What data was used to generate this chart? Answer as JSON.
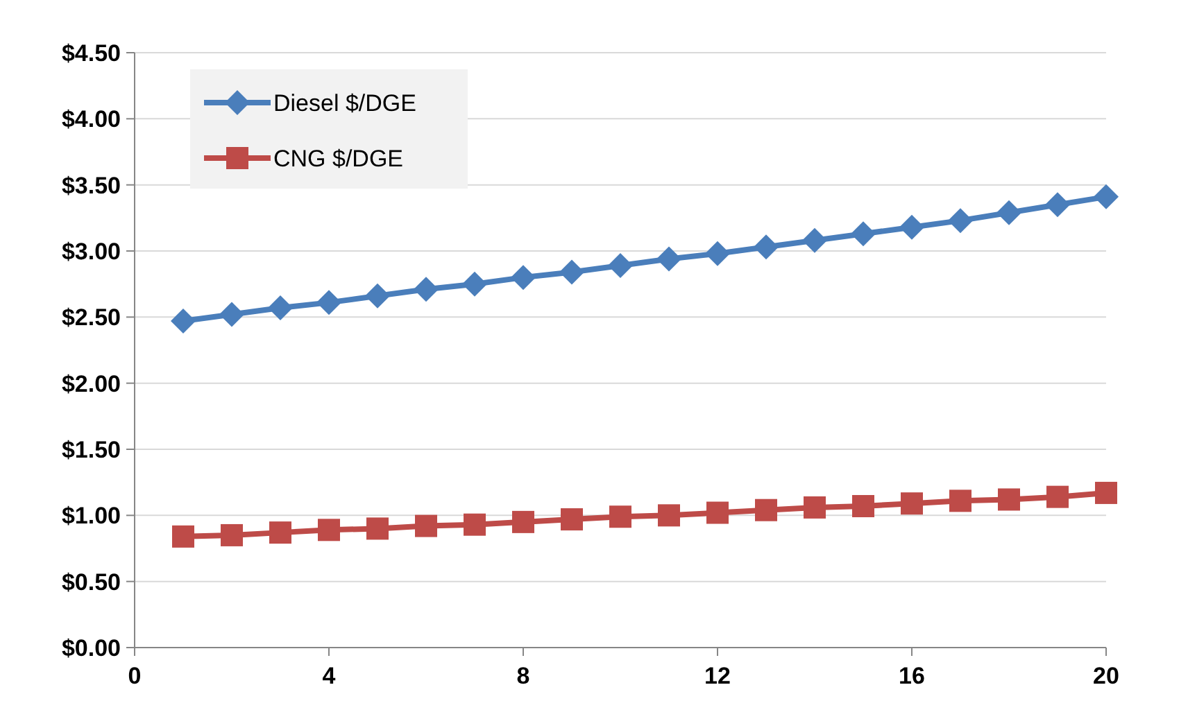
{
  "chart_data": {
    "type": "line",
    "x": [
      1,
      2,
      3,
      4,
      5,
      6,
      7,
      8,
      9,
      10,
      11,
      12,
      13,
      14,
      15,
      16,
      17,
      18,
      19,
      20
    ],
    "series": [
      {
        "name": "Diesel $/DGE",
        "color": "#4a7ebb",
        "marker": "diamond",
        "values": [
          2.47,
          2.52,
          2.57,
          2.61,
          2.66,
          2.71,
          2.75,
          2.8,
          2.84,
          2.89,
          2.94,
          2.98,
          3.03,
          3.08,
          3.13,
          3.18,
          3.23,
          3.29,
          3.35,
          3.41
        ]
      },
      {
        "name": "CNG $/DGE",
        "color": "#be4b48",
        "marker": "square",
        "values": [
          0.84,
          0.85,
          0.87,
          0.89,
          0.9,
          0.92,
          0.93,
          0.95,
          0.97,
          0.99,
          1.0,
          1.02,
          1.04,
          1.06,
          1.07,
          1.09,
          1.11,
          1.12,
          1.14,
          1.17
        ]
      }
    ],
    "xlim": [
      0,
      20
    ],
    "xticks": [
      0,
      4,
      8,
      12,
      16,
      20
    ],
    "ylim": [
      0,
      4.5
    ],
    "yticks": [
      {
        "value": 0,
        "label": "$0.00"
      },
      {
        "value": 0.5,
        "label": "$0.50"
      },
      {
        "value": 1,
        "label": "$1.00"
      },
      {
        "value": 1.5,
        "label": "$1.50"
      },
      {
        "value": 2,
        "label": "$2.00"
      },
      {
        "value": 2.5,
        "label": "$2.50"
      },
      {
        "value": 3,
        "label": "$3.00"
      },
      {
        "value": 3.5,
        "label": "$3.50"
      },
      {
        "value": 4,
        "label": "$4.00"
      },
      {
        "value": 4.5,
        "label": "$4.50"
      }
    ],
    "grid": "y",
    "legend": "top left"
  }
}
